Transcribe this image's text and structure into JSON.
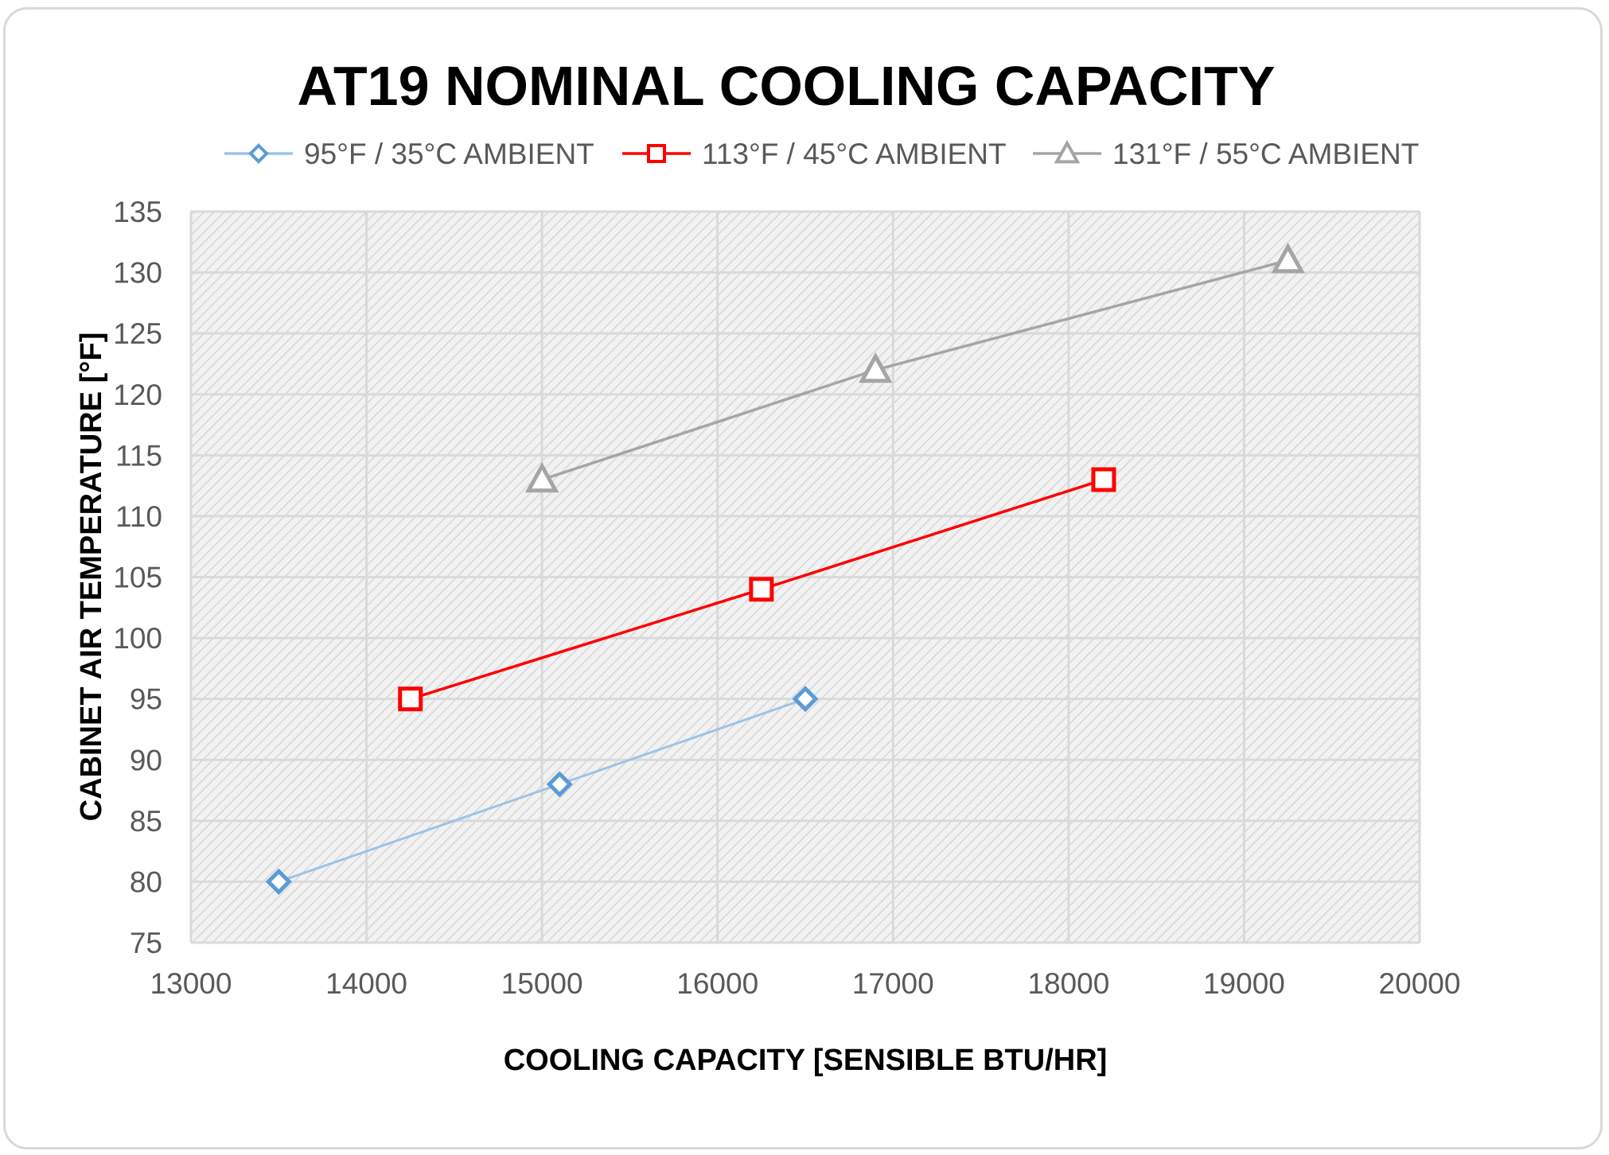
{
  "chart_data": {
    "type": "line",
    "title": "AT19 NOMINAL COOLING CAPACITY",
    "xlabel": "COOLING CAPACITY [SENSIBLE BTU/HR]",
    "ylabel": "CABINET AIR TEMPERATURE  [°F]",
    "xlim": [
      13000,
      20000
    ],
    "ylim": [
      75,
      135
    ],
    "x_ticks": [
      13000,
      14000,
      15000,
      16000,
      17000,
      18000,
      19000,
      20000
    ],
    "y_ticks": [
      75,
      80,
      85,
      90,
      95,
      100,
      105,
      110,
      115,
      120,
      125,
      130,
      135
    ],
    "grid": true,
    "legend_position": "top",
    "series": [
      {
        "name": "95°F / 35°C AMBIENT",
        "color": "#5b9bd5",
        "line_color": "#9dc3e6",
        "marker": "diamond",
        "points": [
          [
            13500,
            80
          ],
          [
            15100,
            88
          ],
          [
            16500,
            95
          ]
        ]
      },
      {
        "name": "113°F / 45°C AMBIENT",
        "color": "#ff0000",
        "line_color": "#ff0000",
        "marker": "square",
        "points": [
          [
            14250,
            95
          ],
          [
            16250,
            104
          ],
          [
            18200,
            113
          ]
        ]
      },
      {
        "name": "131°F / 55°C AMBIENT",
        "color": "#a5a5a5",
        "line_color": "#a5a5a5",
        "marker": "triangle",
        "points": [
          [
            15000,
            113
          ],
          [
            16900,
            122
          ],
          [
            19250,
            131
          ]
        ]
      }
    ]
  }
}
